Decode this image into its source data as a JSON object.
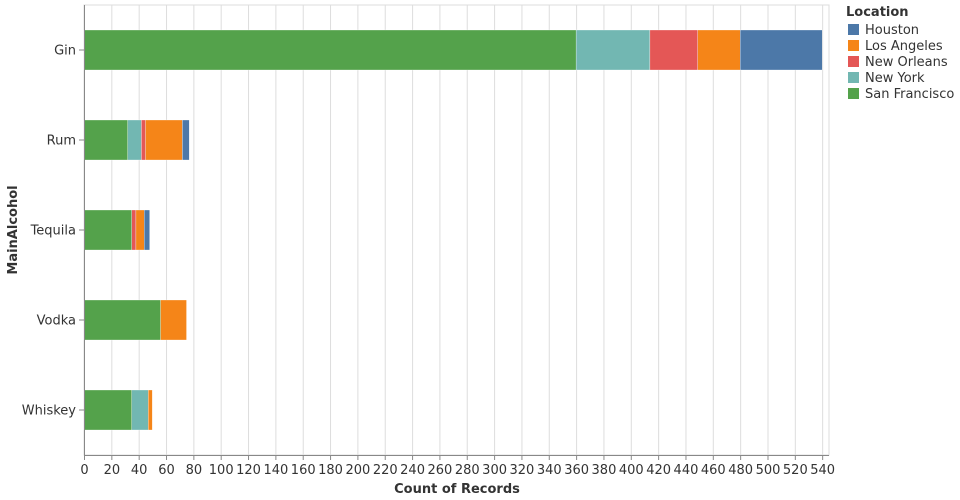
{
  "chart_data": {
    "type": "bar",
    "orientation": "horizontal",
    "stacked": true,
    "xlabel": "Count of Records",
    "ylabel": "MainAlcohol",
    "xlim": [
      0,
      545
    ],
    "x_ticks": [
      0,
      20,
      40,
      60,
      80,
      100,
      120,
      140,
      160,
      180,
      200,
      220,
      240,
      260,
      280,
      300,
      320,
      340,
      360,
      380,
      400,
      420,
      440,
      460,
      480,
      500,
      520,
      540
    ],
    "grid": true,
    "categories": [
      "Gin",
      "Rum",
      "Tequila",
      "Vodka",
      "Whiskey"
    ],
    "legend": {
      "title": "Location",
      "placement": "right"
    },
    "series": [
      {
        "name": "San Francisco",
        "color": "#54a24b",
        "values": [
          360,
          32,
          35,
          56,
          35
        ]
      },
      {
        "name": "New York",
        "color": "#72b7b2",
        "values": [
          54,
          10,
          0,
          0,
          12
        ]
      },
      {
        "name": "New Orleans",
        "color": "#e45756",
        "values": [
          35,
          3,
          3,
          0,
          0
        ]
      },
      {
        "name": "Los Angeles",
        "color": "#f58518",
        "values": [
          31,
          27,
          6,
          19,
          3
        ]
      },
      {
        "name": "Houston",
        "color": "#4c78a8",
        "values": [
          60,
          5,
          4,
          0,
          0
        ]
      }
    ],
    "legend_order": [
      "Houston",
      "Los Angeles",
      "New Orleans",
      "New York",
      "San Francisco"
    ]
  }
}
